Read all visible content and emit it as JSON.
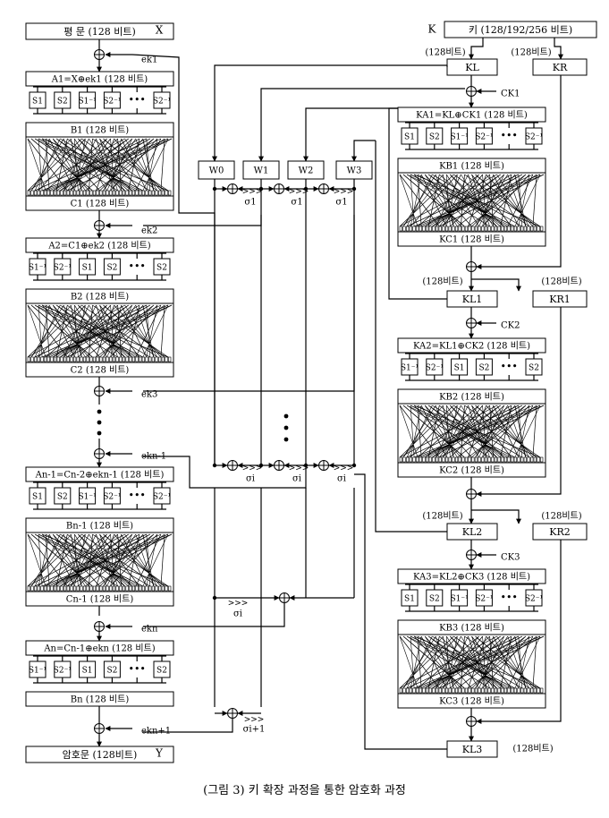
{
  "caption": "(그림 3) 키 확장 과정을 통한 암호화 과정",
  "left": {
    "plaintext": "평 문 (128 비트)",
    "x": "X",
    "ciphertext": "암호문 (128비트)",
    "y": "Y",
    "ek": [
      "ek1",
      "ek2",
      "ek3",
      "ekn-1",
      "ekn",
      "ekn+1"
    ],
    "rounds": [
      {
        "a": "A1=X⊕ek1 (128 비트)",
        "s": [
          "S1",
          "S2",
          "S1⁻¹",
          "S2⁻¹",
          "•••",
          "S2⁻¹"
        ],
        "b": "B1 (128 비트)",
        "c": "C1 (128 비트)"
      },
      {
        "a": "A2=C1⊕ek2 (128 비트)",
        "s": [
          "S1⁻¹",
          "S2⁻¹",
          "S1",
          "S2",
          "•••",
          "S2"
        ],
        "b": "B2 (128 비트)",
        "c": "C2 (128 비트)"
      },
      {
        "a": "An-1=Cn-2⊕ekn-1 (128 비트)",
        "s": [
          "S1",
          "S2",
          "S1⁻¹",
          "S2⁻¹",
          "•••",
          "S2⁻¹"
        ],
        "b": "Bn-1 (128 비트)",
        "c": "Cn-1 (128 비트)"
      },
      {
        "a": "An=Cn-1⊕ekn (128 비트)",
        "s": [
          "S1⁻¹",
          "S2⁻¹",
          "S1",
          "S2",
          "•••",
          "S2"
        ],
        "b": "Bn (128 비트)"
      }
    ]
  },
  "middle": {
    "w": [
      "W0",
      "W1",
      "W2",
      "W3"
    ],
    "sigma": [
      "σ1",
      "σi",
      "σi+1"
    ],
    "rot": ">>>"
  },
  "right": {
    "k_label": "K",
    "k_box": "키 (128/192/256 비트)",
    "bits128": "(128비트)",
    "kl": "KL",
    "kr": "KR",
    "ck": [
      "CK1",
      "CK2",
      "CK3"
    ],
    "rounds": [
      {
        "ka": "KA1=KL⊕CK1 (128 비트)",
        "s": [
          "S1",
          "S2",
          "S1⁻¹",
          "S2⁻¹",
          "•••",
          "S2⁻¹"
        ],
        "kb": "KB1 (128 비트)",
        "kc": "KC1 (128 비트)",
        "kl": "KL1",
        "kr": "KR1"
      },
      {
        "ka": "KA2=KL1⊕CK2 (128 비트)",
        "s": [
          "S1⁻¹",
          "S2⁻¹",
          "S1",
          "S2",
          "•••",
          "S2"
        ],
        "kb": "KB2 (128 비트)",
        "kc": "KC2 (128 비트)",
        "kl": "KL2",
        "kr": "KR2"
      },
      {
        "ka": "KA3=KL2⊕CK3 (128 비트)",
        "s": [
          "S1",
          "S2",
          "S1⁻¹",
          "S2⁻¹",
          "•••",
          "S2⁻¹"
        ],
        "kb": "KB3 (128 비트)",
        "kc": "KC3 (128 비트)",
        "kl": "KL3"
      }
    ]
  }
}
